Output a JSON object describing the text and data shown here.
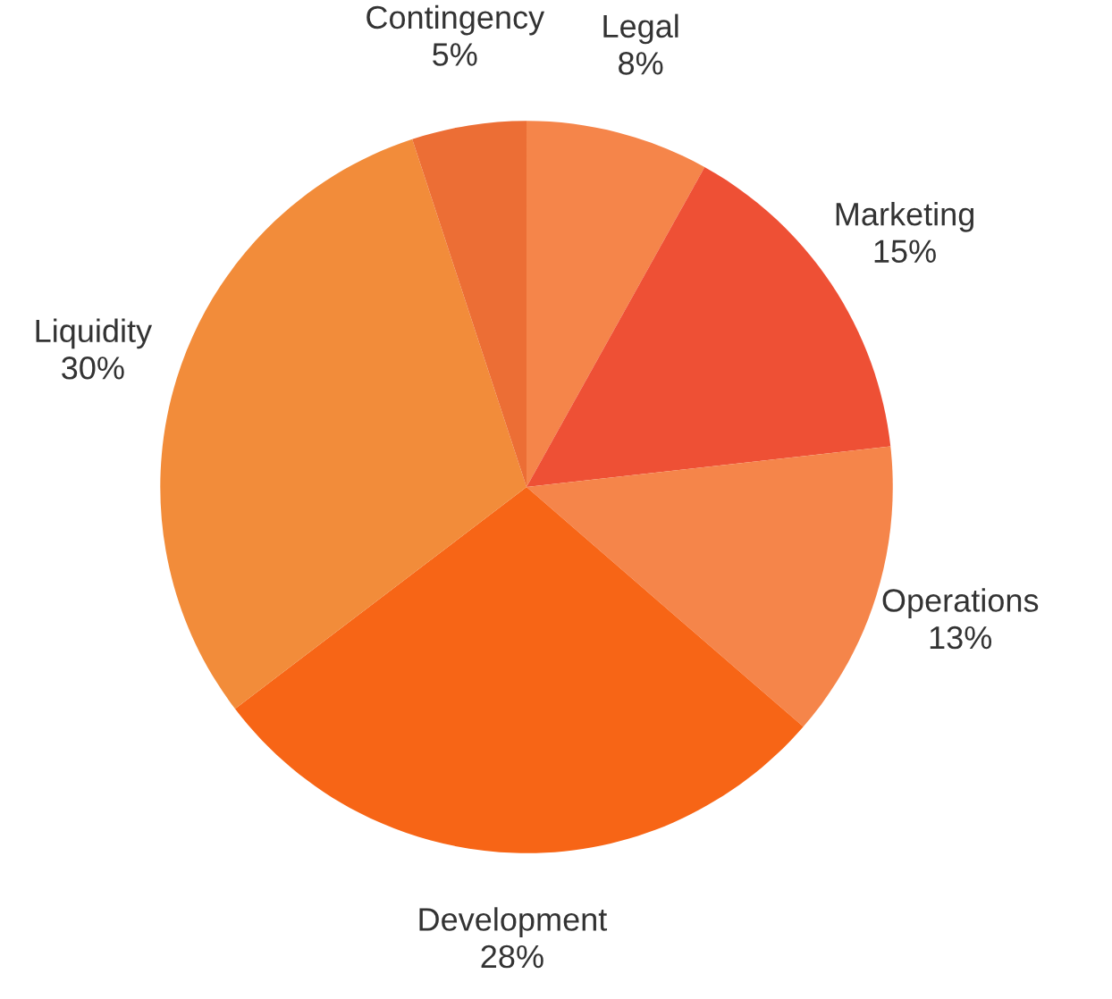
{
  "chart_data": {
    "type": "pie",
    "categories": [
      "Legal",
      "Marketing",
      "Operations",
      "Development",
      "Liquidity",
      "Contingency"
    ],
    "values": [
      8,
      15,
      13,
      28,
      30,
      5
    ],
    "value_labels": [
      "8%",
      "15%",
      "13%",
      "28%",
      "30%",
      "5%"
    ],
    "colors": [
      "#f5854a",
      "#ee5035",
      "#f5854a",
      "#f76516",
      "#f28c3a",
      "#ec6e35"
    ],
    "legend": false
  }
}
